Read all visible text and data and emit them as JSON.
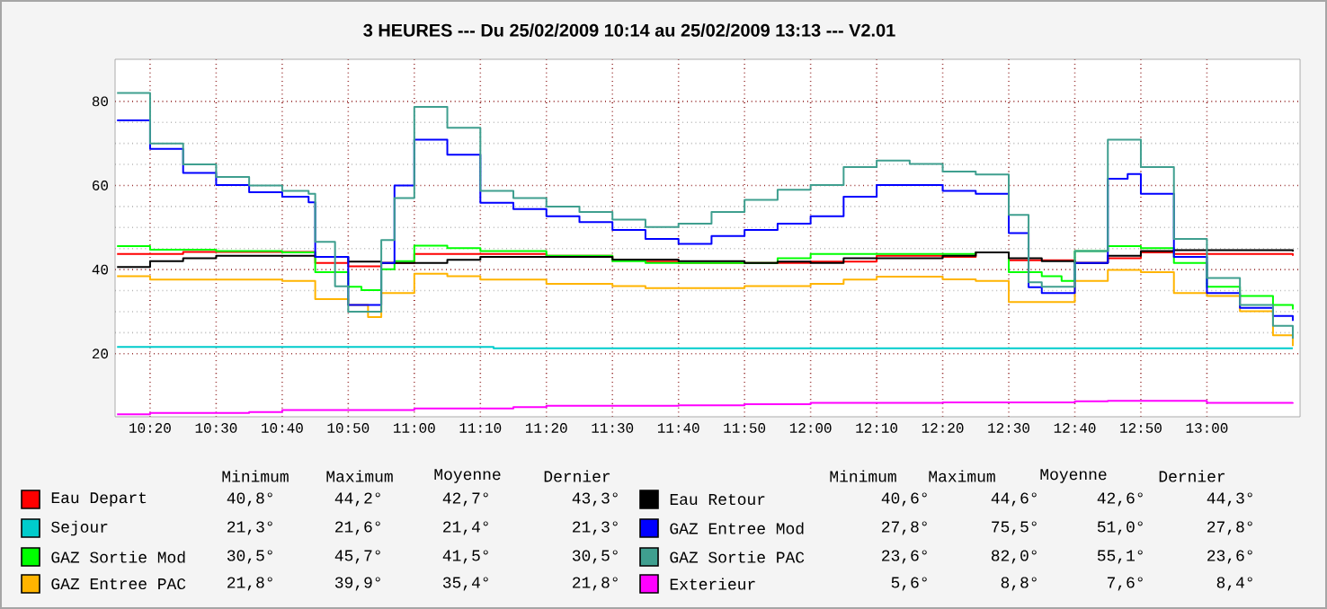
{
  "chart_data": {
    "type": "step",
    "title": "3 HEURES --- Du 25/02/2009 10:14 au 25/02/2009 13:13 --- V2.01",
    "xlim": [
      10.245,
      13.235
    ],
    "ylim": [
      5,
      90
    ],
    "xticks": [
      {
        "value": 10.3333,
        "label": "10:20"
      },
      {
        "value": 10.5,
        "label": "10:30"
      },
      {
        "value": 10.6667,
        "label": "10:40"
      },
      {
        "value": 10.8333,
        "label": "10:50"
      },
      {
        "value": 11,
        "label": "11:00"
      },
      {
        "value": 11.1667,
        "label": "11:10"
      },
      {
        "value": 11.3333,
        "label": "11:20"
      },
      {
        "value": 11.5,
        "label": "11:30"
      },
      {
        "value": 11.6667,
        "label": "11:40"
      },
      {
        "value": 11.8333,
        "label": "11:50"
      },
      {
        "value": 12,
        "label": "12:00"
      },
      {
        "value": 12.1667,
        "label": "12:10"
      },
      {
        "value": 12.3333,
        "label": "12:20"
      },
      {
        "value": 12.5,
        "label": "12:30"
      },
      {
        "value": 12.6667,
        "label": "12:40"
      },
      {
        "value": 12.8333,
        "label": "12:50"
      },
      {
        "value": 13,
        "label": "13:00"
      }
    ],
    "yticks": [
      20,
      40,
      60,
      80
    ],
    "grid": true,
    "legend": "bottom",
    "marker": "none",
    "line_style": "solid",
    "series": [
      {
        "name": "Eau Depart",
        "color": "#ff0000",
        "x": [
          10.25,
          10.3333,
          10.4167,
          10.6667,
          10.75,
          10.8333,
          10.9167,
          11,
          11.1667,
          11.3333,
          11.5,
          11.5833,
          11.6667,
          11.8333,
          12,
          12.1667,
          12.3333,
          12.4167,
          12.5,
          12.6667,
          12.75,
          12.8333,
          12.9167,
          13.2167
        ],
        "values": [
          43.7,
          43.7,
          44.2,
          44.2,
          41.6,
          40.8,
          41.6,
          43.7,
          43.7,
          43.3,
          42.3,
          41.9,
          41.6,
          41.6,
          41.9,
          43.3,
          43,
          44.1,
          42.2,
          41.6,
          42.7,
          44.1,
          43.7,
          43.3
        ]
      },
      {
        "name": "Sejour",
        "color": "#00cccc",
        "x": [
          10.25,
          11.1667,
          11.2,
          13.2167
        ],
        "values": [
          21.6,
          21.6,
          21.3,
          21.3
        ]
      },
      {
        "name": "GAZ Sortie Mod",
        "color": "#00ff00",
        "x": [
          10.25,
          10.3333,
          10.5,
          10.6667,
          10.75,
          10.8333,
          10.8667,
          10.9167,
          10.95,
          11,
          11.0833,
          11.1667,
          11.3333,
          11.5,
          11.5833,
          11.8333,
          11.9167,
          12,
          12.3333,
          12.4167,
          12.5,
          12.5833,
          12.6333,
          12.6667,
          12.75,
          12.8333,
          12.9167,
          13,
          13.0833,
          13.1667,
          13.2167
        ],
        "values": [
          45.6,
          44.7,
          44.4,
          44.1,
          39.4,
          35.9,
          35.1,
          40.1,
          42,
          45.7,
          45.1,
          44.4,
          43.3,
          42,
          41.6,
          41.6,
          42.7,
          43.7,
          43.7,
          44.1,
          39.4,
          38.4,
          37.3,
          44.4,
          45.6,
          45.1,
          41.6,
          35.9,
          33.7,
          31.6,
          30.5
        ]
      },
      {
        "name": "GAZ Entree PAC",
        "color": "#ffb400",
        "x": [
          10.25,
          10.3333,
          10.6667,
          10.75,
          10.8333,
          10.8833,
          10.9167,
          11,
          11.0833,
          11.1667,
          11.3333,
          11.5,
          11.5833,
          11.8333,
          12,
          12.0833,
          12.1667,
          12.3333,
          12.4167,
          12.5,
          12.6667,
          12.75,
          12.8333,
          12.9167,
          13,
          13.0833,
          13.1667,
          13.2167
        ],
        "values": [
          38.4,
          37.6,
          37.3,
          33,
          31.6,
          28.7,
          34.4,
          39,
          38.4,
          37.6,
          36.6,
          36.1,
          35.6,
          36.1,
          36.6,
          37.6,
          38.3,
          37.7,
          37.3,
          32.3,
          37.3,
          39.9,
          39.4,
          34.4,
          33.7,
          30.1,
          24.4,
          21.8
        ]
      },
      {
        "name": "Eau Retour",
        "color": "#000000",
        "x": [
          10.25,
          10.3333,
          10.4167,
          10.5,
          10.6667,
          10.75,
          10.8333,
          10.9167,
          11.0833,
          11.1667,
          11.3333,
          11.5,
          11.6667,
          11.8333,
          11.9167,
          12,
          12.0833,
          12.3333,
          12.4167,
          12.5,
          12.5833,
          12.6667,
          12.75,
          12.8333,
          12.9167,
          13.2167
        ],
        "values": [
          40.6,
          42,
          42.7,
          43.3,
          43.3,
          43,
          41.9,
          41.6,
          42.3,
          43,
          43,
          42.4,
          42,
          41.6,
          41.9,
          41.6,
          42.7,
          43.3,
          44.1,
          42.7,
          42,
          41.6,
          43.3,
          44.4,
          44.6,
          44.3
        ]
      },
      {
        "name": "GAZ Entree Mod",
        "color": "#0000ff",
        "x": [
          10.25,
          10.3333,
          10.4167,
          10.5,
          10.5833,
          10.6667,
          10.7333,
          10.75,
          10.8333,
          10.9167,
          10.95,
          11,
          11.0833,
          11.1667,
          11.25,
          11.3333,
          11.4167,
          11.5,
          11.5833,
          11.6667,
          11.75,
          11.8333,
          11.9167,
          12,
          12.0833,
          12.1667,
          12.3333,
          12.4167,
          12.5,
          12.55,
          12.5833,
          12.6667,
          12.75,
          12.8,
          12.8333,
          12.9167,
          13,
          13.0833,
          13.1667,
          13.2167
        ],
        "values": [
          75.5,
          68.7,
          63,
          60.1,
          58.4,
          57.3,
          56,
          43,
          31.6,
          41.6,
          60,
          70.9,
          67.3,
          55.9,
          54.4,
          52.7,
          51.3,
          49.4,
          47.3,
          46.1,
          48,
          49.4,
          50.9,
          52.7,
          57.3,
          60.1,
          58.7,
          58,
          48.7,
          35.8,
          34.4,
          41.6,
          61.6,
          62.7,
          58,
          43,
          34.4,
          30.9,
          29,
          27.8
        ]
      },
      {
        "name": "GAZ Sortie PAC",
        "color": "#3f9f8f",
        "x": [
          10.25,
          10.3333,
          10.4167,
          10.5,
          10.5833,
          10.6667,
          10.7333,
          10.75,
          10.8,
          10.8333,
          10.9167,
          10.95,
          11,
          11.0833,
          11.1667,
          11.25,
          11.3333,
          11.4167,
          11.5,
          11.5833,
          11.6667,
          11.75,
          11.8333,
          11.9167,
          12,
          12.0833,
          12.1667,
          12.25,
          12.3333,
          12.4167,
          12.5,
          12.55,
          12.5833,
          12.6667,
          12.75,
          12.8333,
          12.9167,
          13,
          13.0833,
          13.1667,
          13.2167
        ],
        "values": [
          82,
          70,
          65,
          62,
          60,
          58.7,
          58,
          46.6,
          36,
          30,
          47,
          57,
          78.7,
          73.7,
          58.7,
          57,
          55,
          53.7,
          51.9,
          50.1,
          50.9,
          53.7,
          56.6,
          59,
          60.1,
          64.4,
          65.9,
          65.1,
          63.3,
          62.6,
          53,
          37,
          35.9,
          44.4,
          70.9,
          64.4,
          47.3,
          38,
          31.6,
          26.6,
          23.6
        ]
      },
      {
        "name": "Exterieur",
        "color": "#ff00ff",
        "x": [
          10.25,
          10.3333,
          10.5833,
          10.6667,
          11,
          11.25,
          11.3333,
          11.6667,
          11.8333,
          12,
          12.3333,
          12.6667,
          12.75,
          13,
          13.2167
        ],
        "values": [
          5.6,
          5.9,
          6.1,
          6.6,
          7,
          7.3,
          7.6,
          7.7,
          8,
          8.3,
          8.4,
          8.7,
          8.8,
          8.3,
          8.4
        ]
      }
    ],
    "annotations": [
      "Minimum",
      "Maximum",
      "Moyenne",
      "Dernier",
      "40,8°",
      "44,2°",
      "42,7°",
      "43,3°",
      "21,3°",
      "21,6°",
      "21,4°",
      "21,3°",
      "30,5°",
      "45,7°",
      "41,5°",
      "30,5°",
      "21,8°",
      "39,9°",
      "35,4°",
      "21,8°",
      "40,6°",
      "44,6°",
      "42,6°",
      "44,3°",
      "27,8°",
      "75,5°",
      "51,0°",
      "27,8°",
      "23,6°",
      "82,0°",
      "55,1°",
      "23,6°",
      "5,6°",
      "8,8°",
      "7,6°",
      "8,4°"
    ]
  }
}
